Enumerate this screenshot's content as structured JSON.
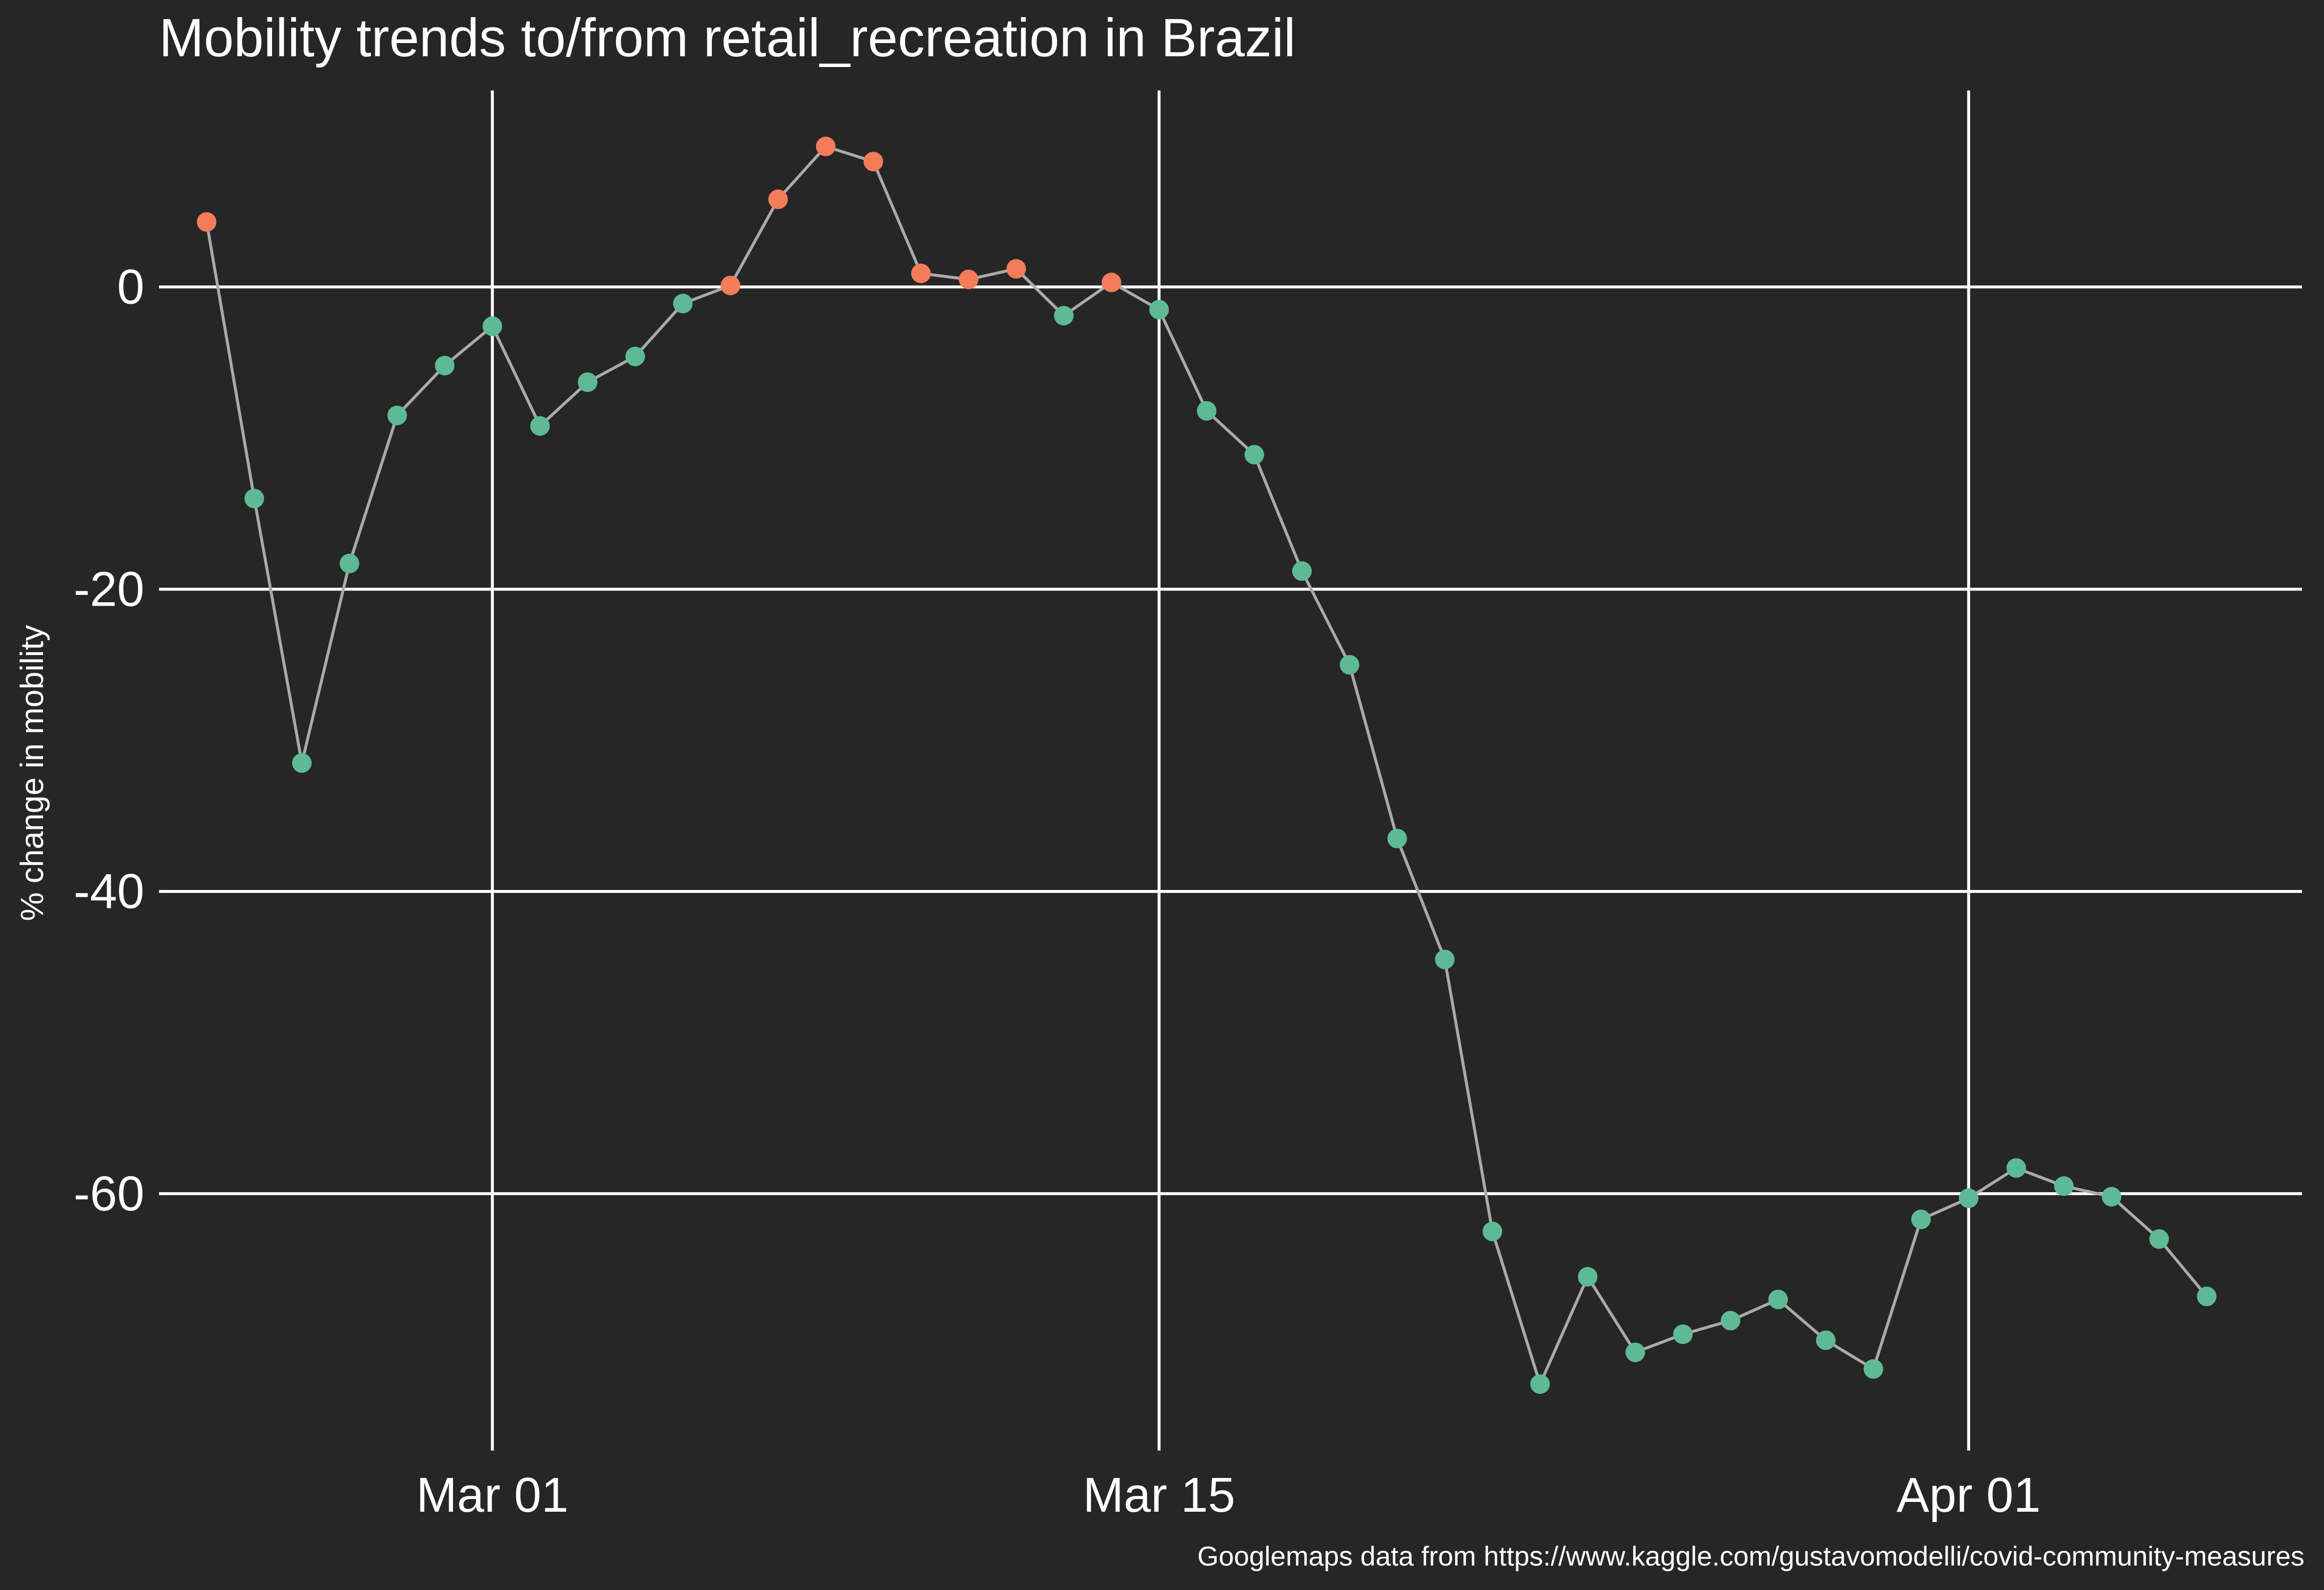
{
  "chart_data": {
    "type": "line",
    "title": "Mobility trends to/from retail_recreation in Brazil",
    "xlabel": "",
    "ylabel": "% change in mobility",
    "caption": "Googlemaps data from https://www.kaggle.com/gustavomodelli/covid-community-measures",
    "x_range": [
      "2020-02-23",
      "2020-04-08"
    ],
    "ylim": [
      -77,
      13
    ],
    "x_ticks": [
      {
        "date": "2020-03-01",
        "label": "Mar 01"
      },
      {
        "date": "2020-03-15",
        "label": "Mar 15"
      },
      {
        "date": "2020-04-01",
        "label": "Apr 01"
      }
    ],
    "y_ticks": [
      {
        "value": 0,
        "label": "0"
      },
      {
        "value": -20,
        "label": "-20"
      },
      {
        "value": -40,
        "label": "-40"
      },
      {
        "value": -60,
        "label": "-60"
      }
    ],
    "grid": true,
    "legend": "none",
    "colors": {
      "background": "#262626",
      "grid": "#ffffff",
      "line": "#aaaaaa",
      "positive_point": "#f47c5a",
      "negative_point": "#5dba94"
    },
    "series": [
      {
        "points": [
          {
            "x": "2020-02-24",
            "y": 4.3
          },
          {
            "x": "2020-02-25",
            "y": -14
          },
          {
            "x": "2020-02-26",
            "y": -31.5
          },
          {
            "x": "2020-02-27",
            "y": -18.3
          },
          {
            "x": "2020-02-28",
            "y": -8.5
          },
          {
            "x": "2020-02-29",
            "y": -5.2
          },
          {
            "x": "2020-03-01",
            "y": -2.6
          },
          {
            "x": "2020-03-02",
            "y": -9.2
          },
          {
            "x": "2020-03-03",
            "y": -6.3
          },
          {
            "x": "2020-03-04",
            "y": -4.6
          },
          {
            "x": "2020-03-05",
            "y": -1.1
          },
          {
            "x": "2020-03-06",
            "y": 0.1
          },
          {
            "x": "2020-03-07",
            "y": 5.8
          },
          {
            "x": "2020-03-08",
            "y": 9.3
          },
          {
            "x": "2020-03-09",
            "y": 8.3
          },
          {
            "x": "2020-03-10",
            "y": 0.9
          },
          {
            "x": "2020-03-11",
            "y": 0.5
          },
          {
            "x": "2020-03-12",
            "y": 1.2
          },
          {
            "x": "2020-03-13",
            "y": -1.9
          },
          {
            "x": "2020-03-14",
            "y": 0.3
          },
          {
            "x": "2020-03-15",
            "y": -1.5
          },
          {
            "x": "2020-03-16",
            "y": -8.2
          },
          {
            "x": "2020-03-17",
            "y": -11.1
          },
          {
            "x": "2020-03-18",
            "y": -18.8
          },
          {
            "x": "2020-03-19",
            "y": -25
          },
          {
            "x": "2020-03-20",
            "y": -36.5
          },
          {
            "x": "2020-03-21",
            "y": -44.5
          },
          {
            "x": "2020-03-22",
            "y": -62.5
          },
          {
            "x": "2020-03-23",
            "y": -72.6
          },
          {
            "x": "2020-03-24",
            "y": -65.5
          },
          {
            "x": "2020-03-25",
            "y": -70.5
          },
          {
            "x": "2020-03-26",
            "y": -69.3
          },
          {
            "x": "2020-03-27",
            "y": -68.4
          },
          {
            "x": "2020-03-28",
            "y": -67
          },
          {
            "x": "2020-03-29",
            "y": -69.7
          },
          {
            "x": "2020-03-30",
            "y": -71.6
          },
          {
            "x": "2020-03-31",
            "y": -61.7
          },
          {
            "x": "2020-04-01",
            "y": -60.3
          },
          {
            "x": "2020-04-02",
            "y": -58.3
          },
          {
            "x": "2020-04-03",
            "y": -59.5
          },
          {
            "x": "2020-04-04",
            "y": -60.2
          },
          {
            "x": "2020-04-05",
            "y": -63
          },
          {
            "x": "2020-04-06",
            "y": -66.8
          }
        ]
      }
    ]
  }
}
